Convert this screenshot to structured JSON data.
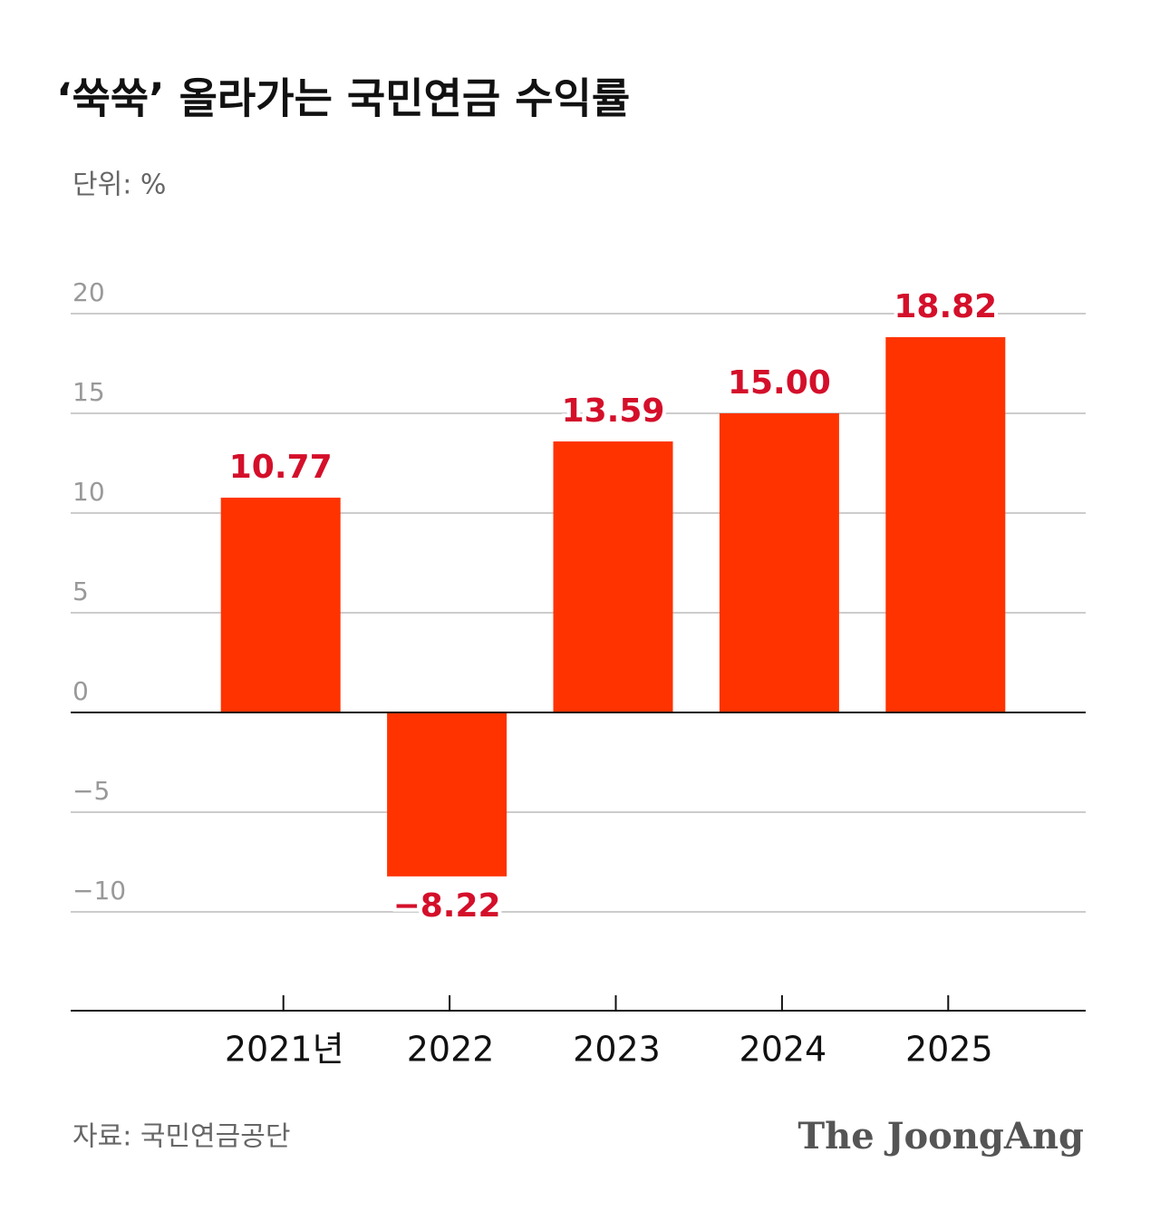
{
  "chart_data": {
    "type": "bar",
    "title": "‘쑥쑥’ 올라가는 국민연금 수익률",
    "subtitle": "단위: %",
    "source": "자료: 국민연금공단",
    "logo": "The JoongAng",
    "categories": [
      "2021년",
      "2022",
      "2023",
      "2024",
      "2025"
    ],
    "values": [
      10.77,
      -8.22,
      13.59,
      15.0,
      18.82
    ],
    "value_labels": [
      "10.77",
      "−8.22",
      "13.59",
      "15.00",
      "18.82"
    ],
    "color": "#ff3300",
    "ylim": [
      -15,
      20
    ],
    "yticks": [
      {
        "value": -10,
        "label": "−10"
      },
      {
        "value": -5,
        "label": "−5"
      },
      0,
      5,
      10,
      15,
      20
    ],
    "grid": true
  }
}
